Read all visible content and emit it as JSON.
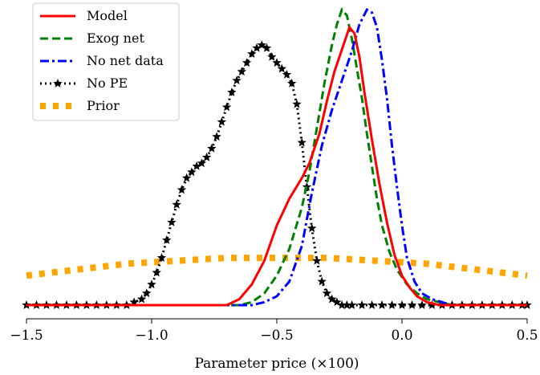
{
  "chart_data": {
    "type": "line",
    "xlabel": "Parameter price (×100)",
    "xlim": [
      -1.5,
      0.5
    ],
    "x_ticks": [
      -1.5,
      -1.0,
      -0.5,
      0.0,
      0.5
    ],
    "x_tick_labels": [
      "−1.5",
      "−1.0",
      "−0.5",
      "0.0",
      "0.5"
    ],
    "y_axis_visible": false,
    "legend_position": "top-left",
    "series": [
      {
        "name": "Model",
        "color": "#ff0000",
        "style": "solid",
        "marker": "none",
        "x": [
          -1.5,
          -0.7,
          -0.65,
          -0.6,
          -0.55,
          -0.5,
          -0.45,
          -0.4,
          -0.37,
          -0.33,
          -0.3,
          -0.27,
          -0.25,
          -0.23,
          -0.21,
          -0.19,
          -0.17,
          -0.15,
          -0.12,
          -0.09,
          -0.06,
          -0.03,
          0.0,
          0.03,
          0.06,
          0.1,
          0.15,
          0.2,
          0.5
        ],
        "y": [
          0.0,
          0.0,
          0.02,
          0.07,
          0.15,
          0.27,
          0.36,
          0.43,
          0.48,
          0.58,
          0.69,
          0.79,
          0.84,
          0.89,
          0.94,
          0.92,
          0.84,
          0.72,
          0.56,
          0.41,
          0.28,
          0.17,
          0.1,
          0.06,
          0.03,
          0.01,
          0.0,
          0.0,
          0.0
        ]
      },
      {
        "name": "Exog net",
        "color": "#008000",
        "style": "dashed",
        "marker": "none",
        "x": [
          -1.5,
          -0.65,
          -0.6,
          -0.55,
          -0.5,
          -0.45,
          -0.4,
          -0.37,
          -0.34,
          -0.31,
          -0.28,
          -0.26,
          -0.24,
          -0.22,
          -0.2,
          -0.18,
          -0.16,
          -0.14,
          -0.12,
          -0.1,
          -0.08,
          -0.05,
          -0.02,
          0.02,
          0.06,
          0.1,
          0.15,
          0.2,
          0.5
        ],
        "y": [
          0.0,
          0.0,
          0.01,
          0.04,
          0.1,
          0.19,
          0.33,
          0.45,
          0.6,
          0.75,
          0.88,
          0.95,
          1.0,
          0.98,
          0.9,
          0.8,
          0.7,
          0.58,
          0.47,
          0.36,
          0.27,
          0.18,
          0.12,
          0.07,
          0.04,
          0.02,
          0.01,
          0.0,
          0.0
        ]
      },
      {
        "name": "No net data",
        "color": "#0000ff",
        "style": "dashdot",
        "marker": "none",
        "x": [
          -1.5,
          -0.6,
          -0.55,
          -0.5,
          -0.45,
          -0.4,
          -0.36,
          -0.32,
          -0.28,
          -0.24,
          -0.2,
          -0.17,
          -0.14,
          -0.12,
          -0.1,
          -0.08,
          -0.06,
          -0.04,
          -0.02,
          0.0,
          0.02,
          0.05,
          0.08,
          0.12,
          0.16,
          0.2,
          0.5
        ],
        "y": [
          0.0,
          0.0,
          0.01,
          0.03,
          0.08,
          0.2,
          0.38,
          0.54,
          0.66,
          0.76,
          0.86,
          0.95,
          1.0,
          0.99,
          0.94,
          0.83,
          0.7,
          0.54,
          0.4,
          0.27,
          0.16,
          0.08,
          0.04,
          0.02,
          0.01,
          0.0,
          0.0
        ]
      },
      {
        "name": "No PE",
        "color": "#000000",
        "style": "dotted",
        "marker": "star",
        "x": [
          -1.5,
          -1.46,
          -1.42,
          -1.38,
          -1.34,
          -1.3,
          -1.26,
          -1.22,
          -1.18,
          -1.14,
          -1.1,
          -1.07,
          -1.04,
          -1.02,
          -1.0,
          -0.98,
          -0.96,
          -0.94,
          -0.92,
          -0.9,
          -0.88,
          -0.86,
          -0.84,
          -0.82,
          -0.8,
          -0.78,
          -0.76,
          -0.74,
          -0.72,
          -0.7,
          -0.68,
          -0.66,
          -0.64,
          -0.62,
          -0.6,
          -0.58,
          -0.56,
          -0.54,
          -0.52,
          -0.5,
          -0.48,
          -0.46,
          -0.44,
          -0.42,
          -0.4,
          -0.38,
          -0.36,
          -0.34,
          -0.32,
          -0.3,
          -0.28,
          -0.26,
          -0.24,
          -0.22,
          -0.2,
          -0.16,
          -0.12,
          -0.08,
          -0.04,
          0.0,
          0.04,
          0.08,
          0.12,
          0.16,
          0.2,
          0.24,
          0.28,
          0.32,
          0.36,
          0.4,
          0.44,
          0.48,
          0.5
        ],
        "y": [
          0.0,
          0.0,
          0.0,
          0.0,
          0.0,
          0.0,
          0.0,
          0.0,
          0.0,
          0.0,
          0.0,
          0.01,
          0.02,
          0.04,
          0.07,
          0.11,
          0.16,
          0.22,
          0.28,
          0.34,
          0.39,
          0.43,
          0.45,
          0.47,
          0.48,
          0.5,
          0.53,
          0.57,
          0.62,
          0.67,
          0.72,
          0.76,
          0.79,
          0.82,
          0.85,
          0.87,
          0.88,
          0.87,
          0.84,
          0.82,
          0.8,
          0.78,
          0.75,
          0.68,
          0.55,
          0.4,
          0.26,
          0.15,
          0.08,
          0.04,
          0.02,
          0.01,
          0.0,
          0.0,
          0.0,
          0.0,
          0.0,
          0.0,
          0.0,
          0.0,
          0.0,
          0.0,
          0.0,
          0.0,
          0.0,
          0.0,
          0.0,
          0.0,
          0.0,
          0.0,
          0.0,
          0.0,
          0.0
        ]
      },
      {
        "name": "Prior",
        "color": "#ffa500",
        "style": "dotted",
        "marker": "none",
        "x": [
          -1.5,
          -1.3,
          -1.1,
          -0.9,
          -0.7,
          -0.5,
          -0.3,
          -0.1,
          0.1,
          0.3,
          0.5
        ],
        "y": [
          0.1,
          0.12,
          0.14,
          0.15,
          0.16,
          0.16,
          0.16,
          0.15,
          0.14,
          0.12,
          0.1
        ]
      }
    ]
  }
}
